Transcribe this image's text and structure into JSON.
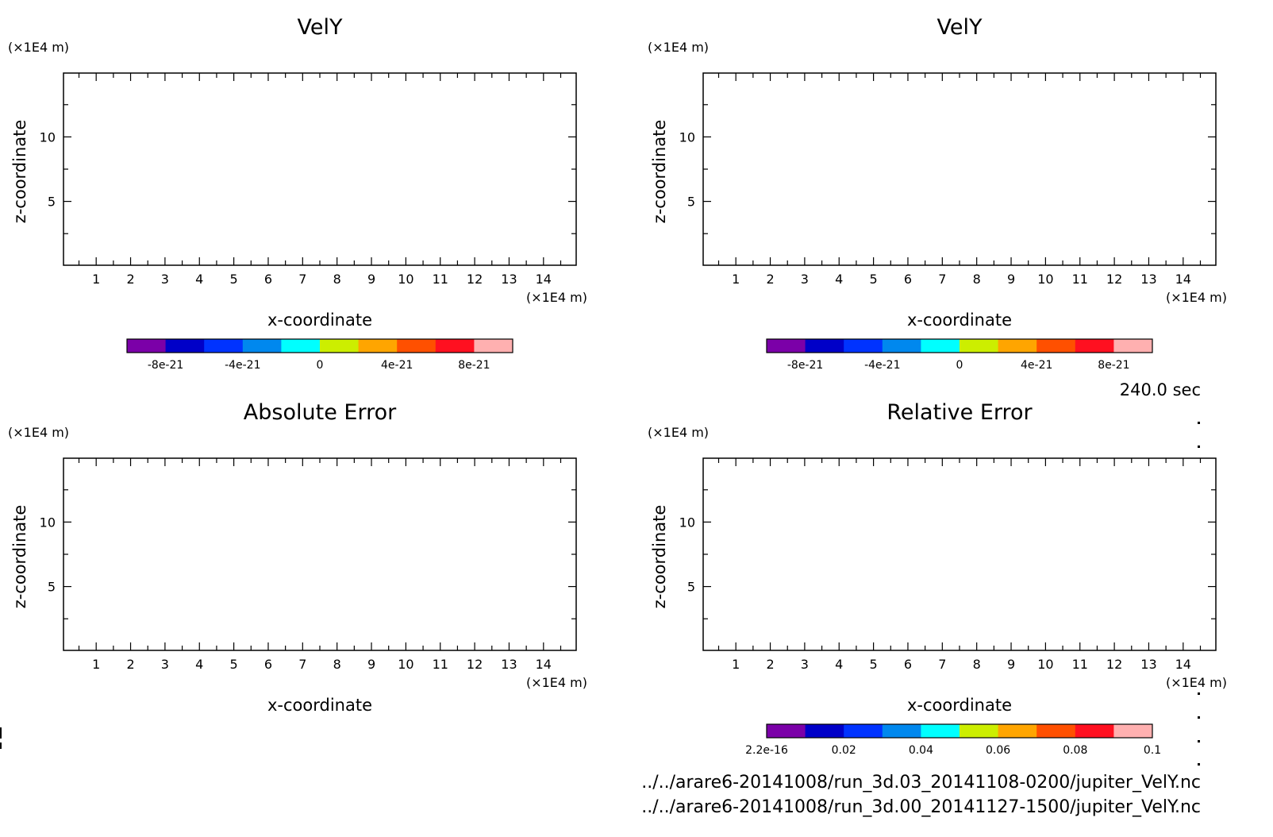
{
  "time_label": "240.0 sec",
  "file_paths": [
    "../../arare6-20141008/run_3d.03_20141108-0200/jupiter_VelY.nc",
    "../../arare6-20141008/run_3d.00_20141127-1500/jupiter_VelY.nc"
  ],
  "colors": {
    "palette": [
      "#7B00A8",
      "#0000C8",
      "#0033FF",
      "#0088EE",
      "#00FFFF",
      "#CCEE00",
      "#FFA500",
      "#FF5000",
      "#FF1020",
      "#FFB0B0"
    ]
  },
  "chart_data": [
    {
      "type": "heatmap",
      "title": "VelY",
      "xlabel": "x-coordinate",
      "ylabel": "z-coordinate",
      "x_unit": "(×1E4 m)",
      "y_unit": "(×1E4 m)",
      "xlim": [
        0.05,
        14.95
      ],
      "ylim": [
        0.05,
        14.95
      ],
      "x_ticks": [
        "1",
        "2",
        "3",
        "4",
        "5",
        "6",
        "7",
        "8",
        "9",
        "10",
        "11",
        "12",
        "13",
        "14"
      ],
      "y_ticks": [
        "5",
        "10"
      ],
      "colorbar": {
        "labels": [
          "-8e-21",
          "-4e-21",
          "0",
          "4e-21",
          "8e-21"
        ],
        "range": [
          -1e-20,
          1e-20
        ]
      }
    },
    {
      "type": "heatmap",
      "title": "VelY",
      "xlabel": "x-coordinate",
      "ylabel": "z-coordinate",
      "x_unit": "(×1E4 m)",
      "y_unit": "(×1E4 m)",
      "xlim": [
        0.05,
        14.95
      ],
      "ylim": [
        0.05,
        14.95
      ],
      "x_ticks": [
        "1",
        "2",
        "3",
        "4",
        "5",
        "6",
        "7",
        "8",
        "9",
        "10",
        "11",
        "12",
        "13",
        "14"
      ],
      "y_ticks": [
        "5",
        "10"
      ],
      "colorbar": {
        "labels": [
          "-8e-21",
          "-4e-21",
          "0",
          "4e-21",
          "8e-21"
        ],
        "range": [
          -1e-20,
          1e-20
        ]
      }
    },
    {
      "type": "heatmap",
      "title": "Absolute Error",
      "xlabel": "x-coordinate",
      "ylabel": "z-coordinate",
      "x_unit": "(×1E4 m)",
      "y_unit": "(×1E4 m)",
      "xlim": [
        0.05,
        14.95
      ],
      "ylim": [
        0.05,
        14.95
      ],
      "x_ticks": [
        "1",
        "2",
        "3",
        "4",
        "5",
        "6",
        "7",
        "8",
        "9",
        "10",
        "11",
        "12",
        "13",
        "14"
      ],
      "y_ticks": [
        "5",
        "10"
      ]
    },
    {
      "type": "heatmap",
      "title": "Relative Error",
      "xlabel": "x-coordinate",
      "ylabel": "z-coordinate",
      "x_unit": "(×1E4 m)",
      "y_unit": "(×1E4 m)",
      "xlim": [
        0.05,
        14.95
      ],
      "ylim": [
        0.05,
        14.95
      ],
      "x_ticks": [
        "1",
        "2",
        "3",
        "4",
        "5",
        "6",
        "7",
        "8",
        "9",
        "10",
        "11",
        "12",
        "13",
        "14"
      ],
      "y_ticks": [
        "5",
        "10"
      ],
      "colorbar": {
        "labels": [
          "2.2e-16",
          "0.02",
          "0.04",
          "0.06",
          "0.08",
          "0.1"
        ],
        "range": [
          0,
          0.1
        ]
      }
    }
  ]
}
